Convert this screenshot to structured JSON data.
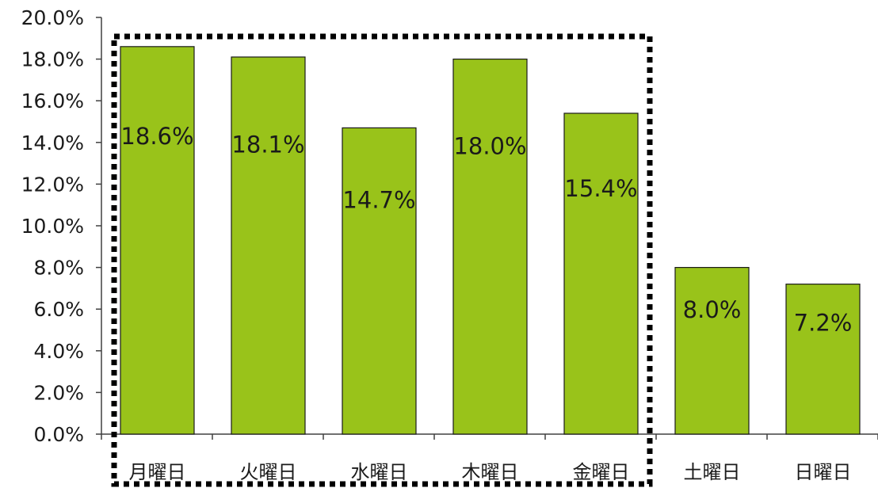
{
  "chart_data": {
    "type": "bar",
    "categories": [
      "月曜日",
      "火曜日",
      "水曜日",
      "木曜日",
      "金曜日",
      "土曜日",
      "日曜日"
    ],
    "values": [
      18.6,
      18.1,
      14.7,
      18.0,
      15.4,
      8.0,
      7.2
    ],
    "data_labels": [
      "18.6%",
      "18.1%",
      "14.7%",
      "18.0%",
      "15.4%",
      "8.0%",
      "7.2%"
    ],
    "y_ticks": [
      0,
      2,
      4,
      6,
      8,
      10,
      12,
      14,
      16,
      18,
      20
    ],
    "y_tick_labels": [
      "0.0%",
      "2.0%",
      "4.0%",
      "6.0%",
      "8.0%",
      "10.0%",
      "12.0%",
      "14.0%",
      "16.0%",
      "18.0%",
      "20.0%"
    ],
    "ylim": [
      0,
      20
    ],
    "title": "",
    "xlabel": "",
    "ylabel": "",
    "grid": false,
    "legend": "none",
    "bar_color": "#99c31a",
    "bar_edge_color": "#1a1a1a",
    "highlight": {
      "style": "dotted-rectangle",
      "covers_categories": [
        "月曜日",
        "火曜日",
        "水曜日",
        "木曜日",
        "金曜日"
      ],
      "color": "#000000"
    }
  }
}
